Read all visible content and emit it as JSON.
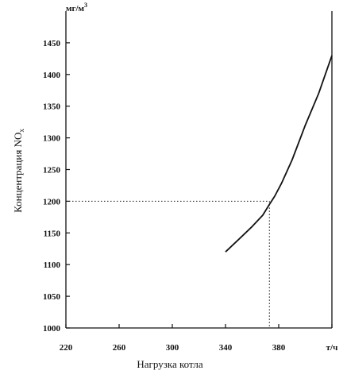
{
  "chart_data": {
    "type": "line",
    "title": "",
    "xlabel": "Нагрузка котла",
    "ylabel": "Концентрация NO",
    "ylabel_sub": "x",
    "x_unit": "т/ч",
    "y_unit": "мг/м",
    "y_unit_sup": "3",
    "xlim": [
      220,
      420
    ],
    "ylim": [
      1000,
      1500
    ],
    "x_ticks": [
      "220",
      "260",
      "300",
      "340",
      "380"
    ],
    "y_ticks": [
      "1000",
      "1050",
      "1100",
      "1150",
      "1200",
      "1250",
      "1300",
      "1350",
      "1400",
      "1450"
    ],
    "grid": false,
    "legend": "none",
    "series": [
      {
        "x": [
          340,
          350,
          360,
          368,
          373,
          377,
          382,
          390,
          400,
          410,
          420
        ],
        "y": [
          1120,
          1140,
          1160,
          1178,
          1195,
          1208,
          1228,
          1265,
          1320,
          1370,
          1430
        ]
      }
    ],
    "annotations": [
      {
        "type": "dotted-reference",
        "x": 373,
        "y": 1200
      }
    ]
  }
}
